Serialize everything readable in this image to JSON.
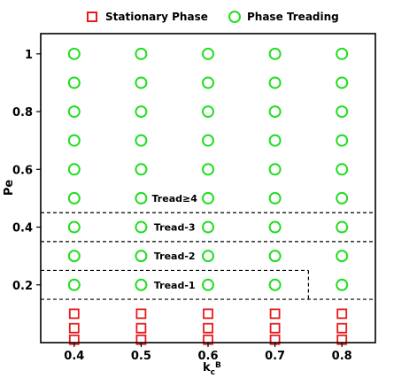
{
  "chart_data": {
    "type": "scatter",
    "xlabel": "k",
    "xlabel_sub": "c",
    "xlabel_sup": "B",
    "ylabel": "Pe",
    "xlim": [
      0.35,
      0.85
    ],
    "ylim": [
      0.0,
      1.07
    ],
    "xticks": [
      0.4,
      0.5,
      0.6,
      0.7,
      0.8
    ],
    "xtick_labels": [
      "0.4",
      "0.5",
      "0.6",
      "0.7",
      "0.8"
    ],
    "yticks": [
      0.2,
      0.4,
      0.6,
      0.8,
      1.0
    ],
    "ytick_labels": [
      "0.2",
      "0.4",
      "0.6",
      "0.8",
      "1"
    ],
    "legend_position": "top",
    "series": [
      {
        "name": "Stationary Phase",
        "marker": "square",
        "color": "#e8191b",
        "points": [
          {
            "x": 0.4,
            "y": 0.01
          },
          {
            "x": 0.4,
            "y": 0.05
          },
          {
            "x": 0.4,
            "y": 0.1
          },
          {
            "x": 0.5,
            "y": 0.01
          },
          {
            "x": 0.5,
            "y": 0.05
          },
          {
            "x": 0.5,
            "y": 0.1
          },
          {
            "x": 0.6,
            "y": 0.01
          },
          {
            "x": 0.6,
            "y": 0.05
          },
          {
            "x": 0.6,
            "y": 0.1
          },
          {
            "x": 0.7,
            "y": 0.01
          },
          {
            "x": 0.7,
            "y": 0.05
          },
          {
            "x": 0.7,
            "y": 0.1
          },
          {
            "x": 0.8,
            "y": 0.01
          },
          {
            "x": 0.8,
            "y": 0.05
          },
          {
            "x": 0.8,
            "y": 0.1
          }
        ]
      },
      {
        "name": "Phase Treading",
        "marker": "circle",
        "color": "#22dd22",
        "points": [
          {
            "x": 0.4,
            "y": 0.2
          },
          {
            "x": 0.4,
            "y": 0.3
          },
          {
            "x": 0.4,
            "y": 0.4
          },
          {
            "x": 0.4,
            "y": 0.5
          },
          {
            "x": 0.4,
            "y": 0.6
          },
          {
            "x": 0.4,
            "y": 0.7
          },
          {
            "x": 0.4,
            "y": 0.8
          },
          {
            "x": 0.4,
            "y": 0.9
          },
          {
            "x": 0.4,
            "y": 1.0
          },
          {
            "x": 0.5,
            "y": 0.2
          },
          {
            "x": 0.5,
            "y": 0.3
          },
          {
            "x": 0.5,
            "y": 0.4
          },
          {
            "x": 0.5,
            "y": 0.5
          },
          {
            "x": 0.5,
            "y": 0.6
          },
          {
            "x": 0.5,
            "y": 0.7
          },
          {
            "x": 0.5,
            "y": 0.8
          },
          {
            "x": 0.5,
            "y": 0.9
          },
          {
            "x": 0.5,
            "y": 1.0
          },
          {
            "x": 0.6,
            "y": 0.2
          },
          {
            "x": 0.6,
            "y": 0.3
          },
          {
            "x": 0.6,
            "y": 0.4
          },
          {
            "x": 0.6,
            "y": 0.5
          },
          {
            "x": 0.6,
            "y": 0.6
          },
          {
            "x": 0.6,
            "y": 0.7
          },
          {
            "x": 0.6,
            "y": 0.8
          },
          {
            "x": 0.6,
            "y": 0.9
          },
          {
            "x": 0.6,
            "y": 1.0
          },
          {
            "x": 0.7,
            "y": 0.2
          },
          {
            "x": 0.7,
            "y": 0.3
          },
          {
            "x": 0.7,
            "y": 0.4
          },
          {
            "x": 0.7,
            "y": 0.5
          },
          {
            "x": 0.7,
            "y": 0.6
          },
          {
            "x": 0.7,
            "y": 0.7
          },
          {
            "x": 0.7,
            "y": 0.8
          },
          {
            "x": 0.7,
            "y": 0.9
          },
          {
            "x": 0.7,
            "y": 1.0
          },
          {
            "x": 0.8,
            "y": 0.2
          },
          {
            "x": 0.8,
            "y": 0.3
          },
          {
            "x": 0.8,
            "y": 0.4
          },
          {
            "x": 0.8,
            "y": 0.5
          },
          {
            "x": 0.8,
            "y": 0.6
          },
          {
            "x": 0.8,
            "y": 0.7
          },
          {
            "x": 0.8,
            "y": 0.8
          },
          {
            "x": 0.8,
            "y": 0.9
          },
          {
            "x": 0.8,
            "y": 1.0
          }
        ]
      }
    ],
    "regions": [
      {
        "label": "Tread-1",
        "boundary": [
          [
            0.35,
            0.15
          ],
          [
            0.85,
            0.15
          ],
          [
            0.85,
            0.25
          ],
          [
            0.75,
            0.25
          ],
          [
            0.75,
            0.15
          ]
        ],
        "label_at": {
          "x": 0.55,
          "y": 0.2
        }
      },
      {
        "label": "Tread-2",
        "boundary": [
          [
            0.35,
            0.25
          ],
          [
            0.75,
            0.25
          ],
          [
            0.35,
            0.35
          ],
          [
            0.85,
            0.35
          ]
        ],
        "label_at": {
          "x": 0.55,
          "y": 0.3
        }
      },
      {
        "label": "Tread-3",
        "boundary": [
          [
            0.35,
            0.35
          ],
          [
            0.85,
            0.35
          ],
          [
            0.35,
            0.45
          ],
          [
            0.85,
            0.45
          ]
        ],
        "label_at": {
          "x": 0.55,
          "y": 0.4
        }
      },
      {
        "label": "Tread≥4",
        "boundary": [
          [
            0.35,
            0.45
          ],
          [
            0.85,
            0.45
          ]
        ],
        "label_at": {
          "x": 0.55,
          "y": 0.5
        }
      }
    ],
    "boundary_segments": [
      {
        "from": {
          "x": 0.35,
          "y": 0.15
        },
        "to": {
          "x": 0.85,
          "y": 0.15
        }
      },
      {
        "from": {
          "x": 0.35,
          "y": 0.25
        },
        "to": {
          "x": 0.75,
          "y": 0.25
        }
      },
      {
        "from": {
          "x": 0.75,
          "y": 0.25
        },
        "to": {
          "x": 0.75,
          "y": 0.15
        }
      },
      {
        "from": {
          "x": 0.35,
          "y": 0.35
        },
        "to": {
          "x": 0.85,
          "y": 0.35
        }
      },
      {
        "from": {
          "x": 0.35,
          "y": 0.45
        },
        "to": {
          "x": 0.85,
          "y": 0.45
        }
      }
    ]
  }
}
